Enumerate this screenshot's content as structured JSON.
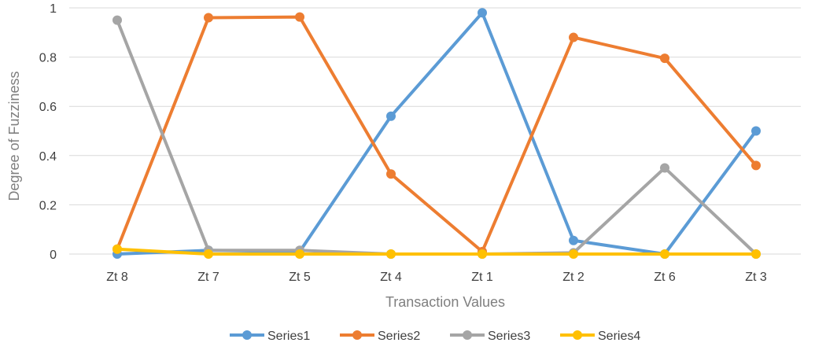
{
  "chart_data": {
    "type": "line",
    "title": "",
    "xlabel": "Transaction Values",
    "ylabel": "Degree of Fuzziness",
    "categories": [
      "Zt 8",
      "Zt 7",
      "Zt 5",
      "Zt 4",
      "Zt 1",
      "Zt 2",
      "Zt 6",
      "Zt 3"
    ],
    "ylim": [
      0,
      1
    ],
    "yticks": [
      0,
      0.2,
      0.4,
      0.6,
      0.8,
      1
    ],
    "ytick_labels": [
      "0",
      "0.2",
      "0.4",
      "0.6",
      "0.8",
      "1"
    ],
    "grid": true,
    "legend_position": "bottom",
    "series": [
      {
        "name": "Series1",
        "color": "#5b9bd5",
        "values": [
          0,
          0.015,
          0.01,
          0.56,
          0.98,
          0.055,
          0,
          0.5
        ]
      },
      {
        "name": "Series2",
        "color": "#ed7d31",
        "values": [
          0.02,
          0.96,
          0.963,
          0.325,
          0.01,
          0.88,
          0.795,
          0.36
        ]
      },
      {
        "name": "Series3",
        "color": "#a5a5a5",
        "values": [
          0.95,
          0.015,
          0.015,
          0,
          0,
          0.005,
          0.35,
          0
        ]
      },
      {
        "name": "Series4",
        "color": "#ffc000",
        "values": [
          0.02,
          0,
          0,
          0,
          0,
          0,
          0,
          0
        ]
      }
    ]
  }
}
